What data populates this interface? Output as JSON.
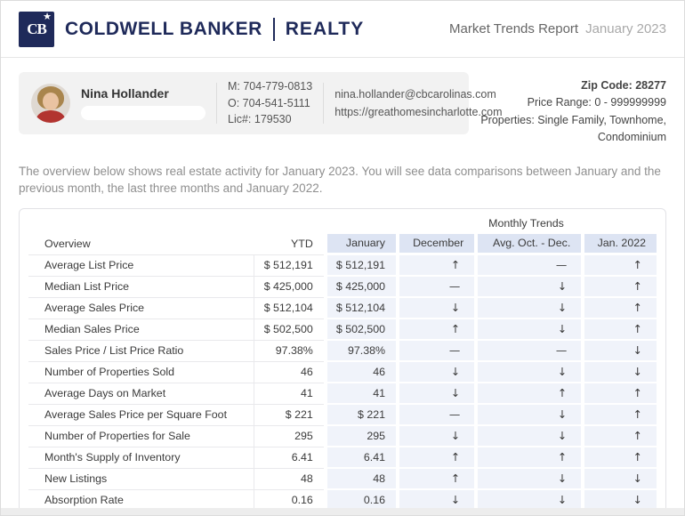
{
  "header": {
    "logo_monogram": "CB",
    "logo_star": "★",
    "brand_name": "COLDWELL BANKER",
    "brand_division": "REALTY",
    "report_title": "Market Trends Report",
    "report_period": "January 2023"
  },
  "agent": {
    "name": "Nina Hollander",
    "mobile": "M: 704-779-0813",
    "office": "O: 704-541-5111",
    "license": "Lic#: 179530",
    "email": "nina.hollander@cbcarolinas.com",
    "website": "https://greathomesincharlotte.com"
  },
  "report_meta": {
    "zip": "Zip Code: 28277",
    "price_range": "Price Range: 0 - 999999999",
    "properties": "Properties: Single Family, Townhome, Condominium"
  },
  "intro": "The overview below shows real estate activity for January 2023. You will see data comparisons between January and the previous month, the last three months and January 2022.",
  "colors": {
    "brand_navy": "#1f2a5a",
    "header_cell_blue": "#dde4f3",
    "body_cell_blue": "#f0f3fa",
    "trend_up_green": "#2aa96b",
    "trend_down_red": "#c6494f",
    "trend_flat_dark": "#2b2b2b"
  },
  "table": {
    "group_header": "Monthly Trends",
    "columns": {
      "overview": "Overview",
      "ytd": "YTD",
      "january": "January",
      "december": "December",
      "avg_oct_dec": "Avg. Oct. - Dec.",
      "jan_2022": "Jan. 2022"
    },
    "trend_glyphs": {
      "up": "↑",
      "down": "↓",
      "flat": "—"
    },
    "rows": [
      {
        "label": "Average List Price",
        "ytd": "$ 512,191",
        "january": "$ 512,191",
        "december": "up",
        "avg_oct_dec": "flat",
        "jan_2022": "up"
      },
      {
        "label": "Median List Price",
        "ytd": "$ 425,000",
        "january": "$ 425,000",
        "december": "flat",
        "avg_oct_dec": "down",
        "jan_2022": "up"
      },
      {
        "label": "Average Sales Price",
        "ytd": "$ 512,104",
        "january": "$ 512,104",
        "december": "down",
        "avg_oct_dec": "down",
        "jan_2022": "up"
      },
      {
        "label": "Median Sales Price",
        "ytd": "$ 502,500",
        "january": "$ 502,500",
        "december": "up",
        "avg_oct_dec": "down",
        "jan_2022": "up"
      },
      {
        "label": "Sales Price / List Price Ratio",
        "ytd": "97.38%",
        "january": "97.38%",
        "december": "flat",
        "avg_oct_dec": "flat",
        "jan_2022": "down"
      },
      {
        "label": "Number of Properties Sold",
        "ytd": "46",
        "january": "46",
        "december": "down",
        "avg_oct_dec": "down",
        "jan_2022": "down"
      },
      {
        "label": "Average Days on Market",
        "ytd": "41",
        "january": "41",
        "december": "down",
        "avg_oct_dec": "up",
        "jan_2022": "up"
      },
      {
        "label": "Average Sales Price per Square Foot",
        "ytd": "$ 221",
        "january": "$ 221",
        "december": "flat",
        "avg_oct_dec": "down",
        "jan_2022": "up"
      },
      {
        "label": "Number of Properties for Sale",
        "ytd": "295",
        "january": "295",
        "december": "down",
        "avg_oct_dec": "down",
        "jan_2022": "up"
      },
      {
        "label": "Month's Supply of Inventory",
        "ytd": "6.41",
        "january": "6.41",
        "december": "up",
        "avg_oct_dec": "up",
        "jan_2022": "up"
      },
      {
        "label": "New Listings",
        "ytd": "48",
        "january": "48",
        "december": "up",
        "avg_oct_dec": "down",
        "jan_2022": "down"
      },
      {
        "label": "Absorption Rate",
        "ytd": "0.16",
        "january": "0.16",
        "december": "down",
        "avg_oct_dec": "down",
        "jan_2022": "down"
      }
    ]
  }
}
